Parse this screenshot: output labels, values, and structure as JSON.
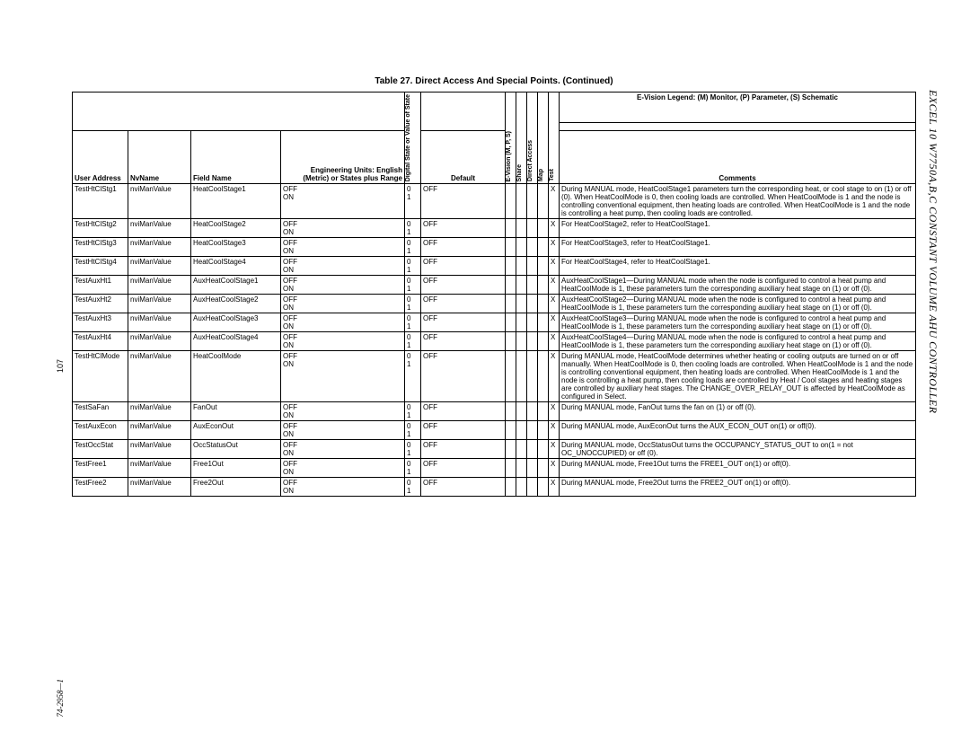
{
  "title": "Table 27. Direct Access And Special Points. (Continued)",
  "legend": "E-Vision Legend: (M) Monitor, (P) Parameter, (S) Schematic",
  "side_title": "EXCEL 10 W7750A,B,C CONSTANT VOLUME AHU CONTROLLER",
  "page_num": "107",
  "doc_num": "74-2958—1",
  "headers": {
    "user_address": "User Address",
    "nvname": "NvName",
    "field_name": "Field Name",
    "eng_units_line1": "Engineering Units: English",
    "eng_units_line2": "(Metric) or States plus Range",
    "digital_state": "Digital State or Value of State",
    "default": "Default",
    "evision": "E-Vision (M, P, S)",
    "share": "Share",
    "direct_access": "Direct Access",
    "map": "Map",
    "test": "Test",
    "comments": "Comments"
  },
  "rows": [
    {
      "ua": "TestHtClStg1",
      "nv": "nviManValue",
      "fn": "HeatCoolStage1",
      "eu": "OFF\nON",
      "ds": "0\n1",
      "def": "OFF",
      "ev": "",
      "sh": "",
      "da": "",
      "mp": "",
      "te": "X",
      "co": "During MANUAL mode, HeatCoolStage1 parameters turn the corresponding heat, or cool stage to on (1) or off (0). When HeatCoolMode is 0, then cooling loads are controlled. When HeatCoolMode is 1 and the node is controlling conventional equipment, then heating loads are controlled. When HeatCoolMode is 1 and the node is controlling a heat pump, then cooling loads are controlled."
    },
    {
      "ua": "TestHtClStg2",
      "nv": "nviManValue",
      "fn": "HeatCoolStage2",
      "eu": "OFF\nON",
      "ds": "0\n1",
      "def": "OFF",
      "ev": "",
      "sh": "",
      "da": "",
      "mp": "",
      "te": "X",
      "co": "For HeatCoolStage2, refer to HeatCoolStage1."
    },
    {
      "ua": "TestHtClStg3",
      "nv": "nviManValue",
      "fn": "HeatCoolStage3",
      "eu": "OFF\nON",
      "ds": "0\n1",
      "def": "OFF",
      "ev": "",
      "sh": "",
      "da": "",
      "mp": "",
      "te": "X",
      "co": "For HeatCoolStage3, refer to HeatCoolStage1."
    },
    {
      "ua": "TestHtClStg4",
      "nv": "nviManValue",
      "fn": "HeatCoolStage4",
      "eu": "OFF\nON",
      "ds": "0\n1",
      "def": "OFF",
      "ev": "",
      "sh": "",
      "da": "",
      "mp": "",
      "te": "X",
      "co": "For HeatCoolStage4, refer to HeatCoolStage1."
    },
    {
      "ua": "TestAuxHt1",
      "nv": "nviManValue",
      "fn": "AuxHeatCoolStage1",
      "eu": "OFF\nON",
      "ds": "0\n1",
      "def": "OFF",
      "ev": "",
      "sh": "",
      "da": "",
      "mp": "",
      "te": "X",
      "co": "AuxHeatCoolStage1—During MANUAL mode when the node is configured to control a heat pump and HeatCoolMode is 1, these parameters turn the corresponding auxiliary heat stage on (1) or off (0)."
    },
    {
      "ua": "TestAuxHt2",
      "nv": "nviManValue",
      "fn": "AuxHeatCoolStage2",
      "eu": "OFF\nON",
      "ds": "0\n1",
      "def": "OFF",
      "ev": "",
      "sh": "",
      "da": "",
      "mp": "",
      "te": "X",
      "co": "AuxHeatCoolStage2—During MANUAL mode when the node is configured to control a heat pump and HeatCoolMode is 1, these parameters turn the corresponding auxiliary heat stage on (1) or off (0)."
    },
    {
      "ua": "TestAuxHt3",
      "nv": "nviManValue",
      "fn": "AuxHeatCoolStage3",
      "eu": "OFF\nON",
      "ds": "0\n1",
      "def": "OFF",
      "ev": "",
      "sh": "",
      "da": "",
      "mp": "",
      "te": "X",
      "co": "AuxHeatCoolStage3—During MANUAL mode when the node is configured to control a heat pump and HeatCoolMode is 1, these parameters turn the corresponding auxiliary heat stage on (1) or off (0)."
    },
    {
      "ua": "TestAuxHt4",
      "nv": "nviManValue",
      "fn": "AuxHeatCoolStage4",
      "eu": "OFF\nON",
      "ds": "0\n1",
      "def": "OFF",
      "ev": "",
      "sh": "",
      "da": "",
      "mp": "",
      "te": "X",
      "co": "AuxHeatCoolStage4—During MANUAL mode when the node is configured to control a heat pump and HeatCoolMode is 1, these parameters turn the corresponding auxiliary heat stage on (1) or off (0)."
    },
    {
      "ua": "TestHtClMode",
      "nv": "nviManValue",
      "fn": "HeatCoolMode",
      "eu": "OFF\nON",
      "ds": "0\n1",
      "def": "OFF",
      "ev": "",
      "sh": "",
      "da": "",
      "mp": "",
      "te": "X",
      "co": "During MANUAL mode, HeatCoolMode determines whether heating or cooling outputs are turned on or off manually. When HeatCoolMode is 0, then cooling loads are controlled. When HeatCoolMode is 1 and the node is controlling conventional equipment, then heating loads are controlled. When HeatCoolMode is 1 and the node is controlling a heat pump, then cooling loads are controlled by Heat / Cool stages and heating stages are controlled by auxiliary heat stages. The CHANGE_OVER_RELAY_OUT is affected by HeatCoolMode as configured in Select."
    },
    {
      "ua": "TestSaFan",
      "nv": "nviManValue",
      "fn": "FanOut",
      "eu": "OFF\nON",
      "ds": "0\n1",
      "def": "OFF",
      "ev": "",
      "sh": "",
      "da": "",
      "mp": "",
      "te": "X",
      "co": "During MANUAL mode, FanOut turns the fan on (1) or off (0)."
    },
    {
      "ua": "TestAuxEcon",
      "nv": "nviManValue",
      "fn": "AuxEconOut",
      "eu": "OFF\nON",
      "ds": "0\n1",
      "def": "OFF",
      "ev": "",
      "sh": "",
      "da": "",
      "mp": "",
      "te": "X",
      "co": "During MANUAL mode, AuxEconOut turns the AUX_ECON_OUT on(1) or off(0)."
    },
    {
      "ua": "TestOccStat",
      "nv": "nviManValue",
      "fn": "OccStatusOut",
      "eu": "OFF\nON",
      "ds": "0\n1",
      "def": "OFF",
      "ev": "",
      "sh": "",
      "da": "",
      "mp": "",
      "te": "X",
      "co": "During MANUAL mode, OccStatusOut turns the OCCUPANCY_STATUS_OUT to on(1 = not OC_UNOCCUPIED) or off (0)."
    },
    {
      "ua": "TestFree1",
      "nv": "nviManValue",
      "fn": "Free1Out",
      "eu": "OFF\nON",
      "ds": "0\n1",
      "def": "OFF",
      "ev": "",
      "sh": "",
      "da": "",
      "mp": "",
      "te": "X",
      "co": "During MANUAL mode, Free1Out turns the FREE1_OUT on(1) or off(0)."
    },
    {
      "ua": "TestFree2",
      "nv": "nviManValue",
      "fn": "Free2Out",
      "eu": "OFF\nON",
      "ds": "0\n1",
      "def": "OFF",
      "ev": "",
      "sh": "",
      "da": "",
      "mp": "",
      "te": "X",
      "co": "During MANUAL mode, Free2Out turns the FREE2_OUT on(1) or off(0)."
    }
  ]
}
